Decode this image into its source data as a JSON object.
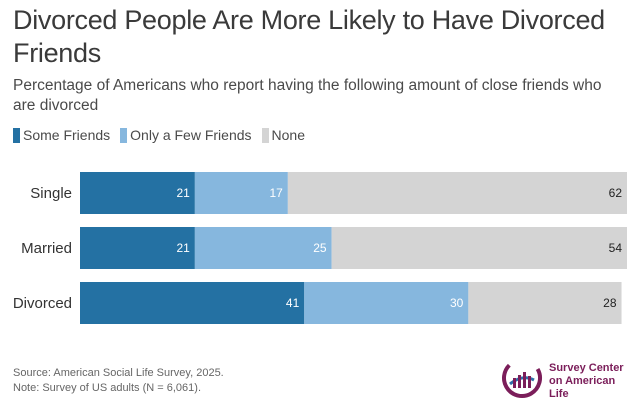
{
  "title": "Divorced People Are More Likely to Have Divorced Friends",
  "subtitle": "Percentage of Americans who report having the following amount of close friends who are divorced",
  "legend": [
    {
      "label": "Some Friends",
      "color": "#2471a3"
    },
    {
      "label": "Only a Few Friends",
      "color": "#86b7de"
    },
    {
      "label": "None",
      "color": "#d4d4d4"
    }
  ],
  "chart_data": {
    "type": "bar",
    "orientation": "horizontal",
    "stacked": true,
    "categories": [
      "Single",
      "Married",
      "Divorced"
    ],
    "series": [
      {
        "name": "Some Friends",
        "values": [
          21,
          21,
          41
        ],
        "color": "#2471a3"
      },
      {
        "name": "Only a Few Friends",
        "values": [
          17,
          25,
          30
        ],
        "color": "#86b7de"
      },
      {
        "name": "None",
        "values": [
          62,
          54,
          28
        ],
        "color": "#d4d4d4"
      }
    ],
    "legend_position": "top-left",
    "grid": false
  },
  "footer": {
    "source": "Source: American Social Life Survey, 2025.",
    "note": "Note: Survey of US adults (N = 6,061)."
  },
  "logo": {
    "line1": "Survey Center",
    "line2": "on American Life",
    "colors": {
      "purple": "#7b1e5a",
      "blue": "#2f6fa8"
    }
  }
}
